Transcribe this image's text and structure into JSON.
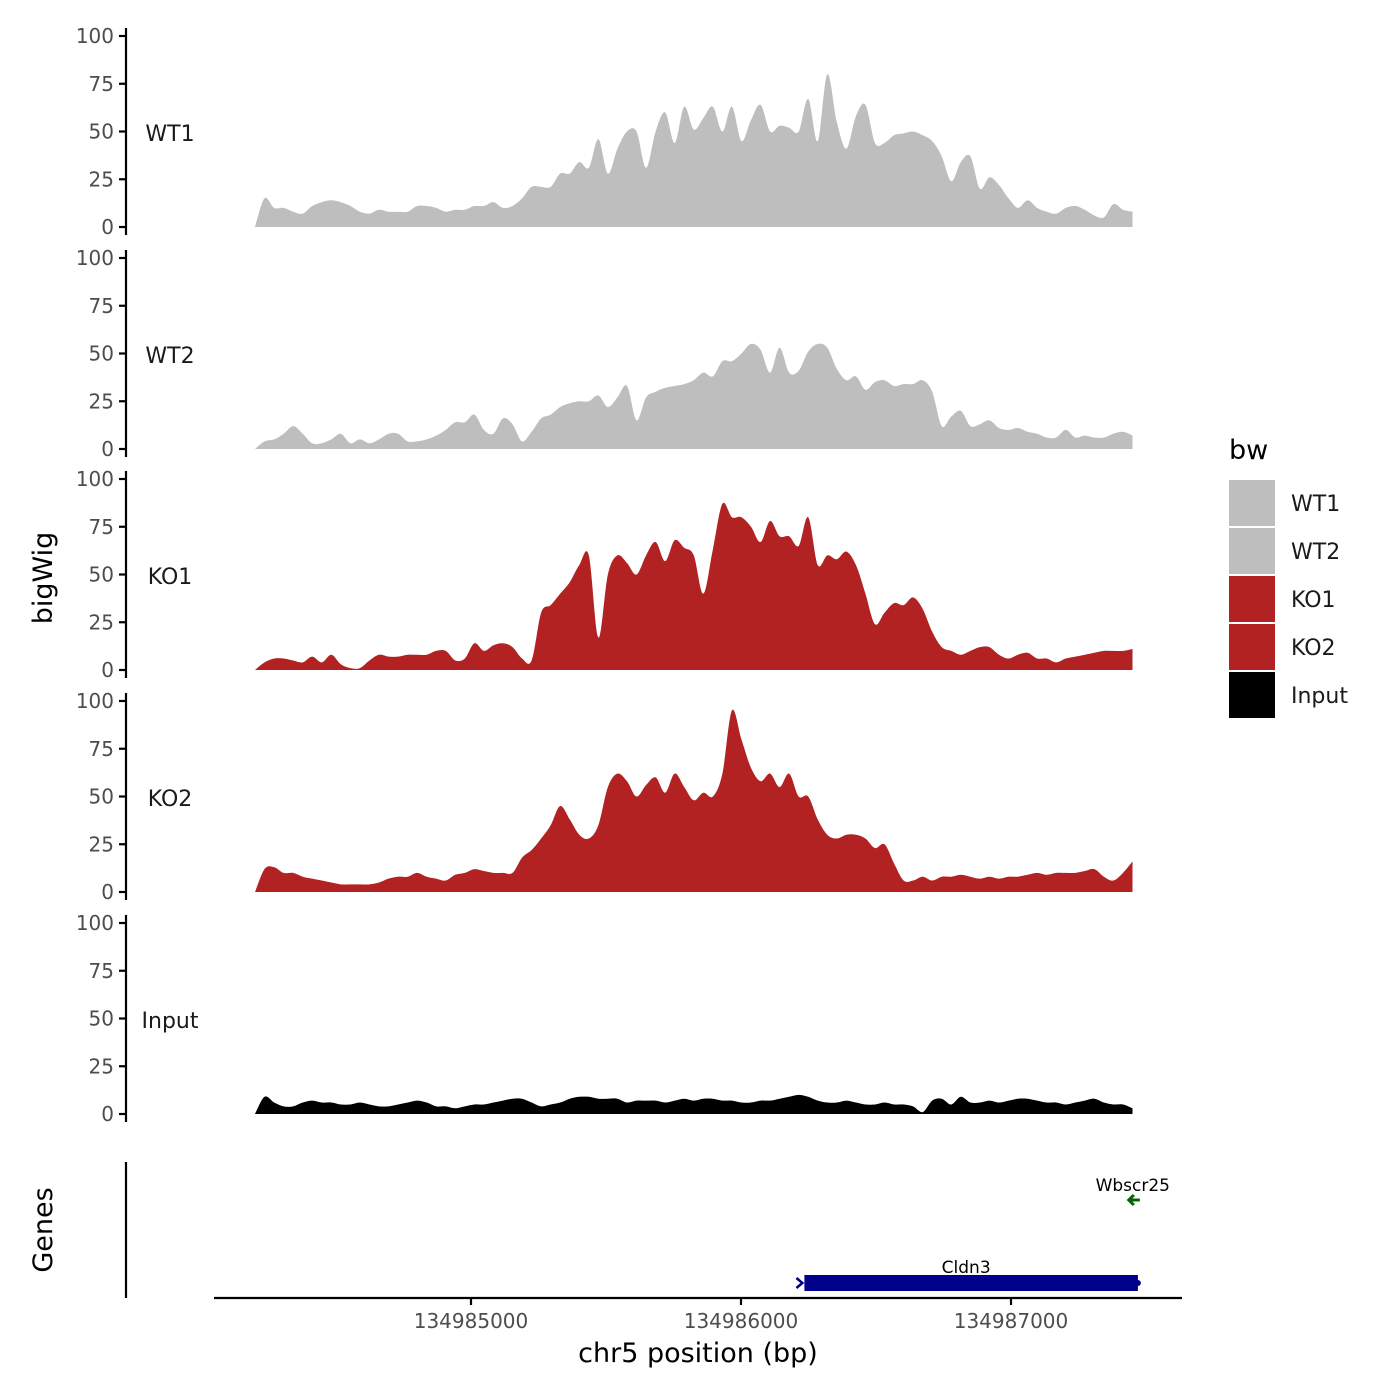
{
  "chart_data": {
    "type": "area",
    "title": "",
    "xlabel": "chr5 position (bp)",
    "ylabel": "bigWig",
    "genes_label": "Genes",
    "xlim": [
      134984000,
      134987600
    ],
    "x_ticks": [
      134985000,
      134986000,
      134987000
    ],
    "x_tick_labels": [
      "134985000",
      "134986000",
      "134987000"
    ],
    "ylim": [
      0,
      100
    ],
    "y_ticks": [
      0,
      25,
      50,
      75,
      100
    ],
    "y_tick_labels": [
      "0",
      "25",
      "50",
      "75",
      "100"
    ],
    "legend": {
      "title": "bw",
      "entries": [
        {
          "label": "WT1",
          "color": "#bebebe"
        },
        {
          "label": "WT2",
          "color": "#bebebe"
        },
        {
          "label": "KO1",
          "color": "#b22222"
        },
        {
          "label": "KO2",
          "color": "#b22222"
        },
        {
          "label": "Input",
          "color": "#000000"
        }
      ]
    },
    "series": [
      {
        "name": "WT1",
        "color": "#bebebe",
        "x_start": 134984200,
        "x_end": 134987450,
        "values": [
          0,
          15,
          10,
          10,
          8,
          7,
          11,
          13,
          14,
          13,
          11,
          8,
          7,
          9,
          8,
          8,
          8,
          11,
          11,
          10,
          8,
          9,
          9,
          11,
          11,
          13,
          10,
          11,
          15,
          21,
          21,
          21,
          28,
          28,
          34,
          31,
          46,
          28,
          41,
          50,
          50,
          31,
          50,
          60,
          44,
          63,
          51,
          57,
          63,
          50,
          63,
          45,
          56,
          64,
          50,
          53,
          52,
          50,
          67,
          45,
          80,
          55,
          41,
          58,
          64,
          44,
          44,
          48,
          49,
          50,
          48,
          45,
          37,
          24,
          34,
          37,
          20,
          26,
          22,
          15,
          10,
          14,
          10,
          8,
          7,
          10,
          11,
          9,
          6,
          5,
          12,
          9,
          8
        ]
      },
      {
        "name": "WT2",
        "color": "#bebebe",
        "x_start": 134984200,
        "x_end": 134987450,
        "values": [
          0,
          4,
          5,
          8,
          12,
          8,
          3,
          3,
          5,
          8,
          3,
          5,
          3,
          5,
          8,
          8,
          4,
          4,
          5,
          7,
          10,
          14,
          14,
          18,
          10,
          8,
          16,
          13,
          4,
          9,
          16,
          18,
          22,
          24,
          25,
          25,
          28,
          22,
          27,
          33,
          15,
          27,
          30,
          32,
          33,
          34,
          36,
          40,
          38,
          46,
          46,
          50,
          55,
          52,
          40,
          53,
          40,
          41,
          51,
          55,
          53,
          42,
          36,
          38,
          31,
          35,
          36,
          33,
          34,
          34,
          36,
          30,
          12,
          17,
          20,
          12,
          13,
          15,
          11,
          10,
          11,
          9,
          8,
          6,
          6,
          10,
          6,
          7,
          6,
          6,
          8,
          9,
          7
        ]
      },
      {
        "name": "KO1",
        "color": "#b22222",
        "x_start": 134984200,
        "x_end": 134987450,
        "values": [
          0,
          4,
          6,
          6,
          5,
          4,
          7,
          4,
          8,
          3,
          1,
          1,
          5,
          8,
          7,
          7,
          8,
          8,
          8,
          10,
          10,
          5,
          6,
          14,
          10,
          13,
          14,
          12,
          6,
          5,
          30,
          34,
          40,
          46,
          55,
          60,
          17,
          50,
          60,
          56,
          50,
          60,
          67,
          57,
          68,
          64,
          60,
          40,
          63,
          87,
          80,
          80,
          75,
          67,
          78,
          70,
          70,
          65,
          80,
          55,
          60,
          58,
          62,
          55,
          40,
          24,
          30,
          35,
          34,
          38,
          32,
          20,
          12,
          10,
          8,
          10,
          12,
          12,
          8,
          6,
          8,
          9,
          6,
          6,
          4,
          6,
          7,
          8,
          9,
          10,
          10,
          10,
          11
        ]
      },
      {
        "name": "KO2",
        "color": "#b22222",
        "x_start": 134984200,
        "x_end": 134987450,
        "values": [
          0,
          12,
          13,
          10,
          10,
          8,
          7,
          6,
          5,
          4,
          4,
          4,
          4,
          5,
          7,
          8,
          8,
          10,
          8,
          7,
          6,
          9,
          10,
          12,
          11,
          10,
          10,
          10,
          18,
          22,
          28,
          35,
          45,
          38,
          30,
          28,
          35,
          55,
          62,
          58,
          50,
          56,
          60,
          52,
          62,
          55,
          48,
          52,
          50,
          62,
          95,
          80,
          65,
          58,
          62,
          55,
          62,
          50,
          50,
          38,
          30,
          28,
          30,
          30,
          28,
          23,
          25,
          15,
          6,
          6,
          8,
          6,
          8,
          8,
          9,
          8,
          7,
          8,
          7,
          8,
          8,
          9,
          10,
          9,
          10,
          10,
          10,
          11,
          12,
          8,
          6,
          10,
          16
        ]
      },
      {
        "name": "Input",
        "color": "#000000",
        "x_start": 134984200,
        "x_end": 134987450,
        "values": [
          0,
          9,
          6,
          4,
          4,
          6,
          7,
          6,
          6,
          5,
          5,
          6,
          5,
          4,
          4,
          5,
          6,
          7,
          6,
          4,
          4,
          3,
          4,
          5,
          5,
          6,
          7,
          8,
          8,
          6,
          4,
          5,
          6,
          8,
          9,
          9,
          8,
          8,
          8,
          6,
          7,
          7,
          7,
          6,
          7,
          8,
          7,
          8,
          8,
          7,
          7,
          6,
          6,
          7,
          7,
          8,
          9,
          10,
          9,
          7,
          6,
          6,
          7,
          6,
          5,
          5,
          6,
          5,
          5,
          4,
          1,
          7,
          8,
          5,
          9,
          6,
          6,
          7,
          6,
          7,
          8,
          8,
          7,
          6,
          6,
          5,
          6,
          7,
          8,
          6,
          5,
          5,
          3
        ]
      }
    ],
    "genes": [
      {
        "name": "Wbscr25",
        "start": 134987440,
        "end": 134987490,
        "strand": "-",
        "color": "#006400",
        "row": 1
      },
      {
        "name": "Cldn3",
        "start": 134986220,
        "end": 134987470,
        "strand": "+",
        "color": "#00008b",
        "row": 0
      }
    ]
  }
}
